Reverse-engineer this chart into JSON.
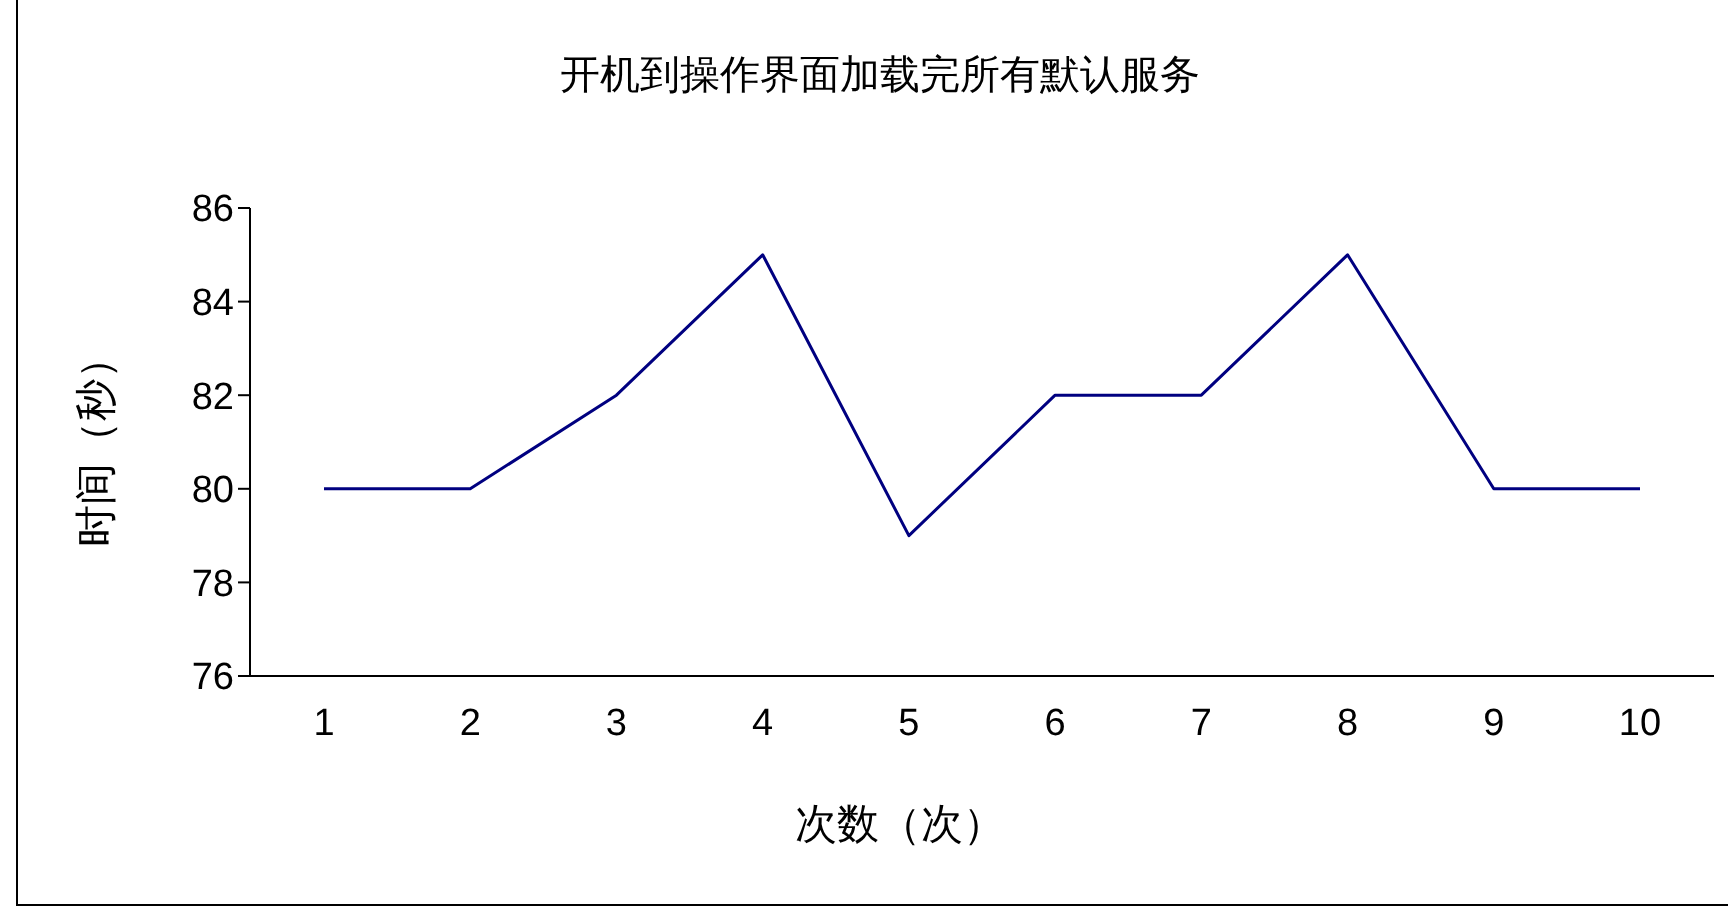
{
  "chart_data": {
    "type": "line",
    "title": "开机到操作界面加载完所有默认服务",
    "xlabel": "次数（次）",
    "ylabel": "时间（秒）",
    "categories": [
      "1",
      "2",
      "3",
      "4",
      "5",
      "6",
      "7",
      "8",
      "9",
      "10"
    ],
    "series": [
      {
        "color": "#000080",
        "values": [
          80,
          80,
          82,
          85,
          79,
          82,
          82,
          85,
          80,
          80
        ]
      }
    ],
    "ylim": [
      76,
      86
    ],
    "yticks": [
      76,
      78,
      80,
      82,
      84,
      86
    ],
    "grid": false,
    "legend": false,
    "marker": "none",
    "line_style": "solid"
  }
}
